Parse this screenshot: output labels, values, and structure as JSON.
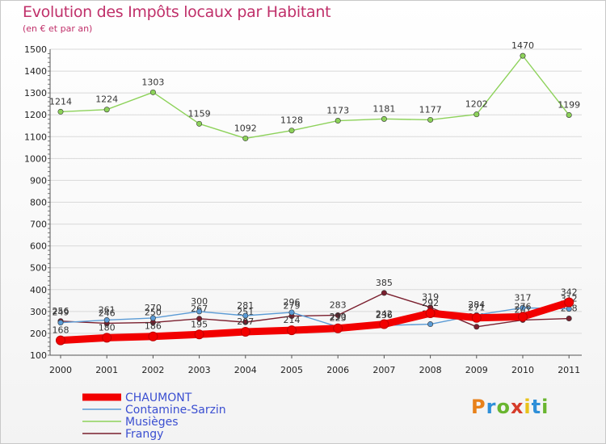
{
  "header": {
    "title": "Evolution des Impôts locaux par Habitant",
    "subtitle": "(en € et par an)"
  },
  "logo": {
    "letters": [
      "P",
      "r",
      "o",
      "x",
      "i",
      "t",
      "i"
    ],
    "colors": [
      "#e8811a",
      "#2f8fd8",
      "#69b52f",
      "#d63c2a",
      "#e8c21a",
      "#2f8fd8",
      "#69b52f"
    ]
  },
  "chart_data": {
    "type": "line",
    "x": [
      "2000",
      "2001",
      "2002",
      "2003",
      "2004",
      "2005",
      "2006",
      "2007",
      "2008",
      "2009",
      "2010",
      "2011"
    ],
    "ylim": [
      100,
      1500
    ],
    "yticks": [
      "100",
      "200",
      "300",
      "400",
      "500",
      "600",
      "700",
      "800",
      "900",
      "1000",
      "1100",
      "1200",
      "1300",
      "1400",
      "1500"
    ],
    "grid": "horizontal",
    "series": [
      {
        "name": "Frangy",
        "color": "#7a1f2e",
        "values": [
          256,
          246,
          250,
          267,
          251,
          279,
          283,
          385,
          319,
          230,
          261,
          268
        ],
        "labels": [
          "256",
          "246",
          "250",
          "267",
          "251",
          "279",
          "283",
          "385",
          "319",
          "230",
          "261",
          "268"
        ]
      },
      {
        "name": "Musièges",
        "color": "#8dd25a",
        "values": [
          1214,
          1224,
          1303,
          1159,
          1092,
          1128,
          1173,
          1181,
          1177,
          1202,
          1470,
          1199
        ],
        "labels": [
          "1214",
          "1224",
          "1303",
          "1159",
          "1092",
          "1128",
          "1173",
          "1181",
          "1177",
          "1202",
          "1470",
          "1199"
        ]
      },
      {
        "name": "Contamine-Sarzin",
        "color": "#5b9bd5",
        "values": [
          249,
          261,
          270,
          300,
          281,
          296,
          230,
          236,
          242,
          284,
          317,
          312
        ],
        "labels": [
          "249",
          "261",
          "270",
          "300",
          "281",
          "296",
          "230",
          "236",
          "242",
          "284",
          "317",
          "312"
        ]
      },
      {
        "name": "CHAUMONT",
        "color": "#f20000",
        "values": [
          168,
          180,
          186,
          195,
          207,
          214,
          223,
          242,
          292,
          271,
          276,
          342
        ],
        "labels": [
          "168",
          "180",
          "186",
          "195",
          "207",
          "214",
          "223",
          "242",
          "292",
          "271",
          "276",
          "342"
        ]
      }
    ],
    "legend": [
      "CHAUMONT",
      "Contamine-Sarzin",
      "Musièges",
      "Frangy"
    ],
    "legend_position": "bottom-left"
  }
}
